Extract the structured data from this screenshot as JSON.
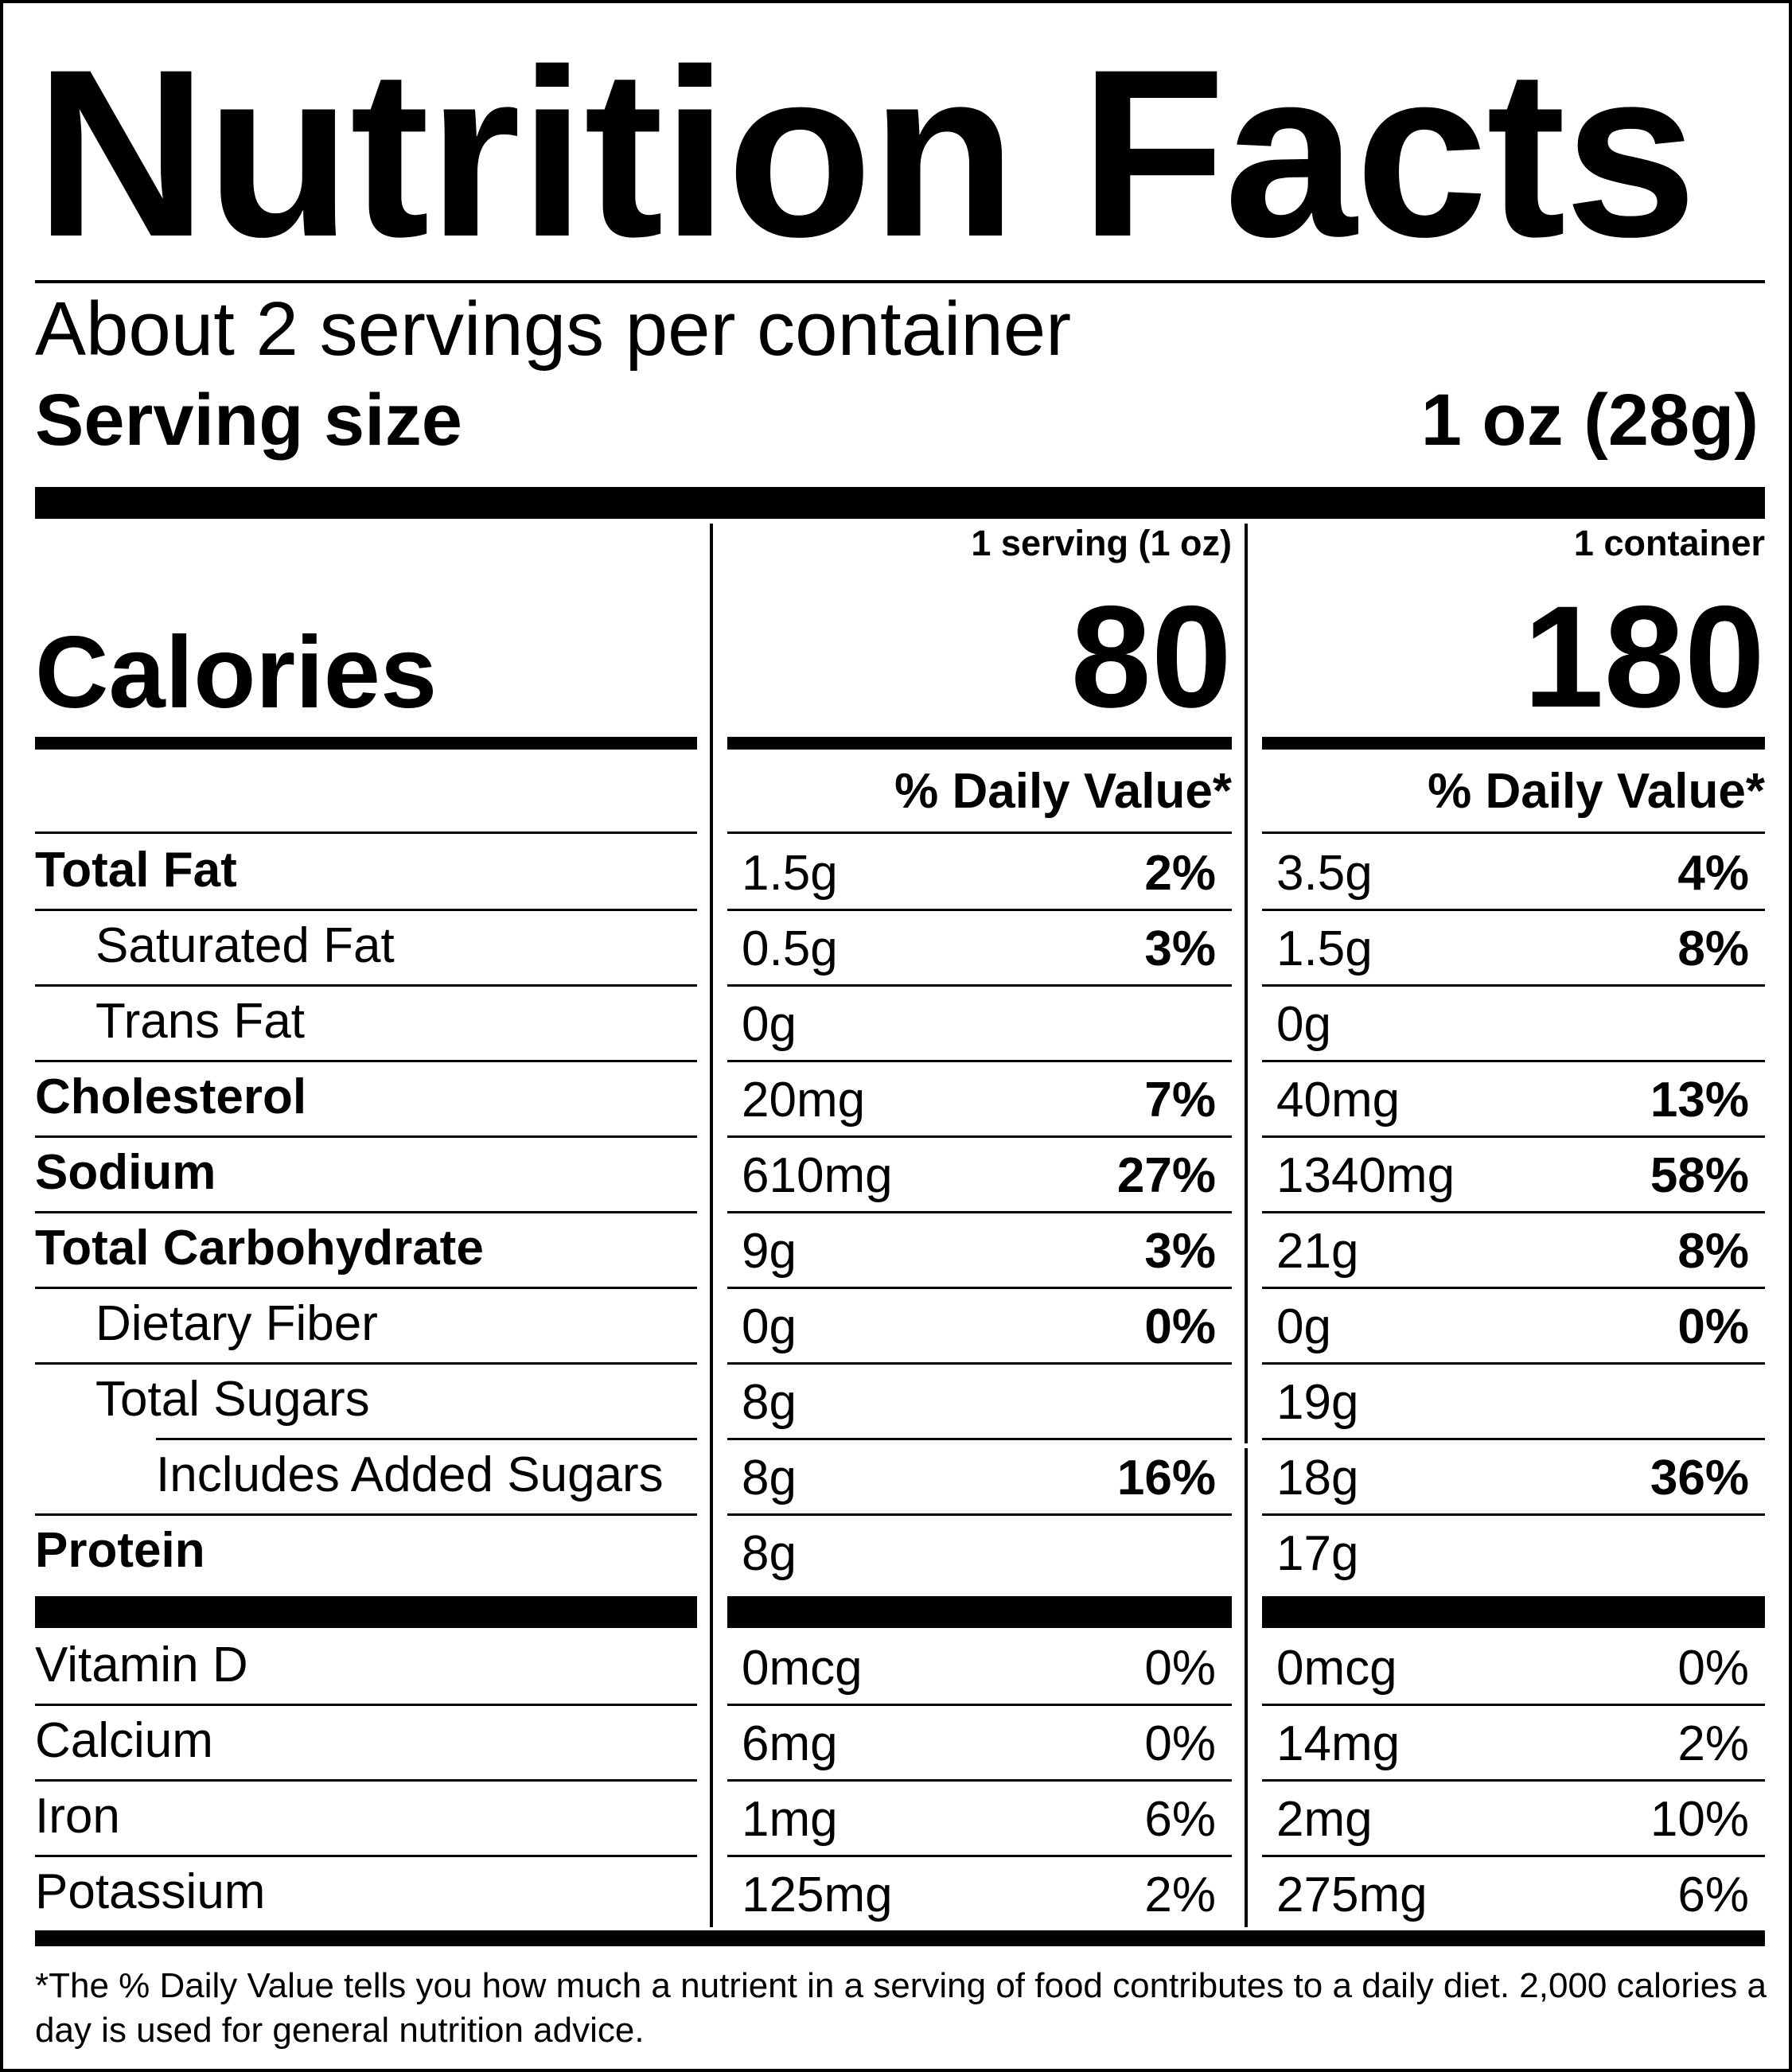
{
  "title": "Nutrition Facts",
  "servings_per_container": "About 2 servings per container",
  "serving_size": {
    "label": "Serving size",
    "value": "1 oz (28g)"
  },
  "columns": [
    {
      "header": "1 serving (1 oz)",
      "calories": "80",
      "dv_header": "% Daily Value*"
    },
    {
      "header": "1 container",
      "calories": "180",
      "dv_header": "% Daily Value*"
    }
  ],
  "calories_label": "Calories",
  "nutrients": [
    {
      "name": "Total Fat",
      "bold": true,
      "indent": 0,
      "values": [
        "1.5g",
        "3.5g"
      ],
      "dv": [
        "2%",
        "4%"
      ]
    },
    {
      "name": "Saturated Fat",
      "bold": false,
      "indent": 1,
      "values": [
        "0.5g",
        "1.5g"
      ],
      "dv": [
        "3%",
        "8%"
      ]
    },
    {
      "name": "Trans Fat",
      "bold": false,
      "indent": 1,
      "values": [
        "0g",
        "0g"
      ],
      "dv": [
        "",
        ""
      ]
    },
    {
      "name": "Cholesterol",
      "bold": true,
      "indent": 0,
      "values": [
        "20mg",
        "40mg"
      ],
      "dv": [
        "7%",
        "13%"
      ]
    },
    {
      "name": "Sodium",
      "bold": true,
      "indent": 0,
      "values": [
        "610mg",
        "1340mg"
      ],
      "dv": [
        "27%",
        "58%"
      ]
    },
    {
      "name": "Total Carbohydrate",
      "bold": true,
      "indent": 0,
      "values": [
        "9g",
        "21g"
      ],
      "dv": [
        "3%",
        "8%"
      ]
    },
    {
      "name": "Dietary Fiber",
      "bold": false,
      "indent": 1,
      "values": [
        "0g",
        "0g"
      ],
      "dv": [
        "0%",
        "0%"
      ]
    },
    {
      "name": "Total Sugars",
      "bold": false,
      "indent": 1,
      "values": [
        "8g",
        "19g"
      ],
      "dv": [
        "",
        ""
      ]
    },
    {
      "name": "Includes Added Sugars",
      "bold": false,
      "indent": 2,
      "values": [
        "8g",
        "18g"
      ],
      "dv": [
        "16%",
        "36%"
      ]
    },
    {
      "name": "Protein",
      "bold": true,
      "indent": 0,
      "values": [
        "8g",
        "17g"
      ],
      "dv": [
        "",
        ""
      ]
    }
  ],
  "vitamins": [
    {
      "name": "Vitamin D",
      "values": [
        "0mcg",
        "0mcg"
      ],
      "dv": [
        "0%",
        "0%"
      ]
    },
    {
      "name": "Calcium",
      "values": [
        "6mg",
        "14mg"
      ],
      "dv": [
        "0%",
        "2%"
      ]
    },
    {
      "name": "Iron",
      "values": [
        "1mg",
        "2mg"
      ],
      "dv": [
        "6%",
        "10%"
      ]
    },
    {
      "name": "Potassium",
      "values": [
        "125mg",
        "275mg"
      ],
      "dv": [
        "2%",
        "6%"
      ]
    }
  ],
  "footnote": "*The % Daily Value tells you how much a nutrient in a serving of food contributes to a daily diet. 2,000 calories a day is used for general nutrition advice."
}
